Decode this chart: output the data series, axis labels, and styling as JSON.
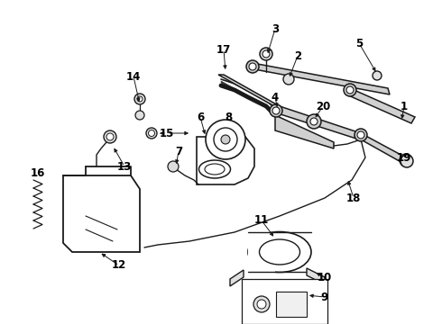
{
  "bg_color": "#ffffff",
  "line_color": "#1a1a1a",
  "label_color": "#000000",
  "figsize": [
    4.9,
    3.6
  ],
  "dpi": 100,
  "xlim": [
    0,
    490
  ],
  "ylim": [
    0,
    360
  ]
}
